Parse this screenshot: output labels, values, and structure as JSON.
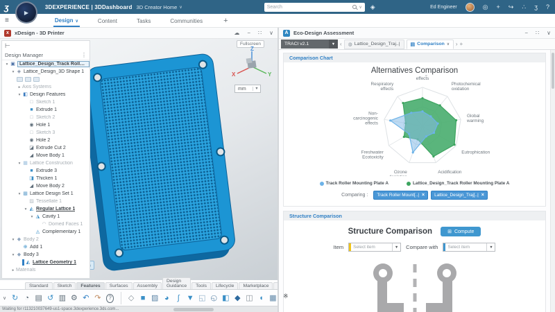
{
  "topbar": {
    "logo": "ʒ",
    "brand": "3DEXPERIENCE | 3DDashboard",
    "app_menu": "3D Creator Home",
    "search_placeholder": "Search",
    "user_name": "Ed Engineer",
    "right_icons": [
      {
        "name": "compass-icon",
        "glyph": "◎"
      },
      {
        "name": "add-icon",
        "glyph": "+"
      },
      {
        "name": "share-arrow-icon",
        "glyph": "↪"
      },
      {
        "name": "share-nodes-icon",
        "glyph": "∴"
      },
      {
        "name": "3ds-apps-icon",
        "glyph": "ʒ"
      },
      {
        "name": "help-icon",
        "glyph": "?"
      }
    ]
  },
  "tabs_row": {
    "tabs": [
      {
        "label": "Design",
        "active": true
      },
      {
        "label": "Content",
        "active": false
      },
      {
        "label": "Tasks",
        "active": false
      },
      {
        "label": "Communities",
        "active": false
      }
    ],
    "add_label": "+"
  },
  "left_window": {
    "title": "xDesign - 3D Printer",
    "controls": [
      {
        "name": "cloud-icon",
        "glyph": "☁"
      },
      {
        "name": "minimize-icon",
        "glyph": "−"
      },
      {
        "name": "expand-icon",
        "glyph": "∷"
      },
      {
        "name": "chevron-down-icon",
        "glyph": "∨"
      }
    ]
  },
  "design_manager": {
    "tool_icon": "⊢",
    "header": "Design Manager",
    "menu_icon": "⋮",
    "icon_map": {
      "product": {
        "glyph": "▣",
        "color": "#4a6fa5"
      },
      "shape": {
        "glyph": "◈",
        "color": "#7a8aa0"
      },
      "features": {
        "glyph": "◧",
        "color": "#3a7bbf"
      },
      "sketch": {
        "glyph": "□",
        "color": "#a8b0b8"
      },
      "extrude": {
        "glyph": "■",
        "color": "#3a8fc7"
      },
      "hole": {
        "glyph": "◉",
        "color": "#5f6e7a"
      },
      "extrude-cut": {
        "glyph": "◪",
        "color": "#5f6e7a"
      },
      "move-body": {
        "glyph": "◢",
        "color": "#5f6e7a"
      },
      "lattice": {
        "glyph": "▦",
        "color": "#9fc2de"
      },
      "thicken": {
        "glyph": "◨",
        "color": "#3a8fc7"
      },
      "lattice-set": {
        "glyph": "▩",
        "color": "#6fa8d0"
      },
      "tessellate": {
        "glyph": "▨",
        "color": "#b4bcc2"
      },
      "regular-lattice": {
        "glyph": "◭",
        "color": "#3a8fc7"
      },
      "cavity": {
        "glyph": "◮",
        "color": "#3a8fc7"
      },
      "domed": {
        "glyph": "◠",
        "color": "#b4bcc2"
      },
      "complementary": {
        "glyph": "◬",
        "color": "#3a8fc7"
      },
      "body": {
        "glyph": "◆",
        "color": "#8fa6c0"
      },
      "add": {
        "glyph": "⊕",
        "color": "#3a8fc7"
      },
      "lattice-geometry": {
        "glyph": "◭",
        "color": "#2b7fc0"
      }
    },
    "items": [
      {
        "d": 0,
        "caret": "open",
        "icon": "product",
        "label": "Lattice_Design_Track Roller Mount...",
        "box": true
      },
      {
        "d": 1,
        "caret": "open",
        "icon": "shape",
        "label": "Lattice_Design_3D Shape 1"
      },
      {
        "d": 2,
        "badges": 3
      },
      {
        "d": 2,
        "caret": "closed",
        "label": "Axis Systems",
        "gray": true
      },
      {
        "d": 2,
        "caret": "open",
        "icon": "features",
        "label": "Design Features"
      },
      {
        "d": 3,
        "icon": "sketch",
        "label": "Sketch 1",
        "gray": true
      },
      {
        "d": 3,
        "icon": "extrude",
        "label": "Extrude 1"
      },
      {
        "d": 3,
        "icon": "sketch",
        "label": "Sketch 2",
        "gray": true
      },
      {
        "d": 3,
        "icon": "hole",
        "label": "Hole 1"
      },
      {
        "d": 3,
        "icon": "sketch",
        "label": "Sketch 3",
        "gray": true
      },
      {
        "d": 3,
        "icon": "hole",
        "label": "Hole 2"
      },
      {
        "d": 3,
        "icon": "extrude-cut",
        "label": "Extrude Cut 2"
      },
      {
        "d": 3,
        "icon": "move-body",
        "label": "Move Body 1"
      },
      {
        "d": 2,
        "caret": "open",
        "icon": "lattice",
        "label": "Lattice Construction",
        "gray": true
      },
      {
        "d": 3,
        "icon": "extrude",
        "label": "Extrude 3"
      },
      {
        "d": 3,
        "icon": "thicken",
        "label": "Thicken 1"
      },
      {
        "d": 3,
        "icon": "move-body",
        "label": "Move Body 2"
      },
      {
        "d": 2,
        "caret": "open",
        "icon": "lattice-set",
        "label": "Lattice Design Set 1"
      },
      {
        "d": 3,
        "icon": "tessellate",
        "label": "Tessellate 1",
        "gray": true
      },
      {
        "d": 3,
        "caret": "open",
        "icon": "regular-lattice",
        "label": "Regular Lattice 1",
        "strong": true
      },
      {
        "d": 4,
        "caret": "open",
        "icon": "cavity",
        "label": "Cavity 1"
      },
      {
        "d": 5,
        "icon": "domed",
        "label": "Domed Faces 1",
        "gray": true
      },
      {
        "d": 4,
        "icon": "complementary",
        "label": "Complementary 1"
      },
      {
        "d": 1,
        "caret": "open",
        "icon": "body",
        "label": "Body 2",
        "gray": true
      },
      {
        "d": 2,
        "icon": "add",
        "label": "Add 1"
      },
      {
        "d": 1,
        "caret": "open",
        "icon": "body",
        "label": "Body 3"
      },
      {
        "d": 2,
        "icon": "lattice-geometry",
        "label": "Lattice Geometry 1",
        "strong": true,
        "marker": true
      },
      {
        "d": 1,
        "caret": "closed",
        "label": "Materials",
        "gray": true
      }
    ]
  },
  "viewport": {
    "fullscreen_label": "Fullscreen",
    "units_value": "mm",
    "axis_x": "X",
    "axis_y": "Y",
    "axis_z": "Z",
    "robot_glyph": "◉"
  },
  "ribbon": {
    "tabs": [
      "Standard",
      "Sketch",
      "Features",
      "Surfaces",
      "Assembly",
      "Design Guidance",
      "Tools",
      "Lifecycle",
      "Marketplace",
      "View"
    ],
    "active_tab": "Features",
    "collapse_glyph": "∨",
    "group1": [
      {
        "name": "sync-icon",
        "glyph": "↻",
        "color": "#3a8fc7"
      },
      {
        "name": "session-icon",
        "glyph": "◔",
        "color": "#5f6e7a"
      },
      {
        "name": "save-icon",
        "glyph": "▤",
        "color": "#5f6e7a"
      },
      {
        "name": "update-icon",
        "glyph": "↺",
        "color": "#3a8fc7"
      },
      {
        "name": "export-icon",
        "glyph": "▥",
        "color": "#5f6e7a"
      },
      {
        "name": "settings-icon",
        "glyph": "⚙",
        "color": "#5f6e7a"
      },
      {
        "name": "undo-icon",
        "glyph": "↶",
        "color": "#2f7fc4"
      },
      {
        "name": "redo-icon",
        "glyph": "↷",
        "color": "#c08a5f"
      },
      {
        "name": "help-icon",
        "glyph": "?",
        "color": "#5f6e7a",
        "circle": true
      }
    ],
    "group2": [
      {
        "name": "box-icon",
        "glyph": "◇",
        "color": "#8a949c"
      },
      {
        "name": "pad-icon",
        "glyph": "■",
        "color": "#3a8fc7"
      },
      {
        "name": "pocket-icon",
        "glyph": "▨",
        "color": "#5f87a8"
      },
      {
        "name": "revolve-icon",
        "glyph": "◕",
        "color": "#3a8fc7"
      },
      {
        "name": "sweep-icon",
        "glyph": "∫",
        "color": "#3a8fc7"
      },
      {
        "name": "drill-icon",
        "glyph": "▼",
        "color": "#3a8fc7"
      },
      {
        "name": "shell-icon",
        "glyph": "◱",
        "color": "#8fb0c9"
      },
      {
        "name": "wrap-icon",
        "glyph": "◵",
        "color": "#5f87a8"
      },
      {
        "name": "corner-icon",
        "glyph": "◧",
        "color": "#3a8fc7"
      },
      {
        "name": "chamfer-icon",
        "glyph": "◆",
        "color": "#2d6a9f"
      },
      {
        "name": "mirror-icon",
        "glyph": "◫",
        "color": "#8a949c"
      },
      {
        "name": "fillet-icon",
        "glyph": "◖",
        "color": "#3a8fc7"
      },
      {
        "name": "pattern-icon",
        "glyph": "▦",
        "color": "#5f87a8"
      }
    ],
    "bug_glyph": "※"
  },
  "statusbar": {
    "text": "Waiting for r113210037649-us1-space.3dexperience.3ds.com..."
  },
  "right_window": {
    "title": "Eco-Design Assessment",
    "controls": [
      {
        "name": "minimize-icon",
        "glyph": "−"
      },
      {
        "name": "expand-icon",
        "glyph": "∷"
      },
      {
        "name": "chevron-down-icon",
        "glyph": "∨"
      }
    ],
    "method_selector": "TRACI v2.1",
    "nav_back": "‹",
    "nav_forward": "›",
    "tab_add": "+",
    "tabs": [
      {
        "icon_glyph": "◍",
        "label": "Lattice_Design_Traj..|",
        "active": false
      },
      {
        "icon_glyph": "▤",
        "label": "Comparison",
        "active": true,
        "caret": "∨"
      }
    ],
    "comparison": {
      "section": "Comparison Chart",
      "chart_title": "Alternatives Comparison",
      "legend": [
        {
          "label": "Track Roller Mounting Plate A",
          "color": "#6db3e8"
        },
        {
          "label": "Lattice_Design_Track Roller Mounting Plate A",
          "color": "#3da45f"
        }
      ],
      "comparing_label": "Comparing :",
      "chips": [
        "Track Roller Mount[..|",
        "Lattice_Design_Traj[..|"
      ],
      "chip_close_glyph": "×"
    },
    "structure": {
      "section": "Structure Comparison",
      "title": "Structure Comparison",
      "compute_label": "Compute",
      "compute_glyph": "⊞",
      "item_label": "Item",
      "item_placeholder": "Select item",
      "item_accent": "#f0c419",
      "compare_label": "Compare with",
      "compare_placeholder": "Select item",
      "compare_accent": "#3f97cf"
    }
  },
  "chart_data": {
    "type": "radar",
    "title": "Alternatives Comparison",
    "axes": [
      "Carcinogenic effects",
      "Photochemical oxidation",
      "Global warming",
      "Eutrophication",
      "Acidification",
      "Ozone depletion",
      "Freshwater Ecotoxicity",
      "Non-carcinogenic effects",
      "Respiratory effects"
    ],
    "axis_labels_wrapped": [
      [
        "Carcinogenic",
        "effects"
      ],
      [
        "Photochemical",
        "oxidation"
      ],
      [
        "Global",
        "warming"
      ],
      [
        "Eutrophication"
      ],
      [
        "Acidification"
      ],
      [
        "Ozone",
        "depletion"
      ],
      [
        "Freshwater",
        "Ecotoxicity"
      ],
      [
        "Non-",
        "carcinogenic",
        "effects"
      ],
      [
        "Respiratory",
        "effects"
      ]
    ],
    "scale": [
      0,
      1
    ],
    "grid": true,
    "legend_position": "bottom",
    "series": [
      {
        "name": "Lattice_Design_Track Roller Mounting Plate A",
        "color": "#3da45f",
        "fill": "rgba(72,173,110,0.9)",
        "values": [
          0.72,
          0.7,
          0.88,
          0.95,
          0.83,
          0.36,
          0.55,
          0.44,
          0.78
        ]
      },
      {
        "name": "Track Roller Mounting Plate A",
        "color": "#6db3e8",
        "fill": "rgba(135,188,232,0.55)",
        "values": [
          0.38,
          0.33,
          0.4,
          0.34,
          0.28,
          0.72,
          0.4,
          0.84,
          0.45
        ]
      }
    ]
  }
}
